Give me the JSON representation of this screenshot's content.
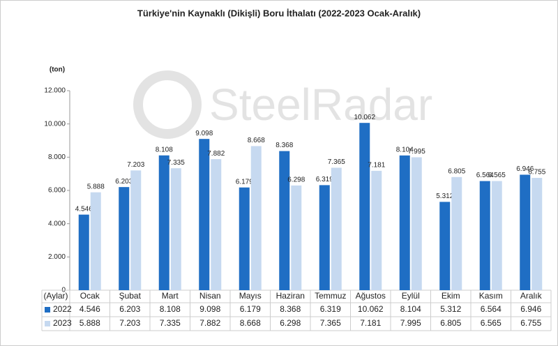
{
  "chart_data": {
    "type": "bar",
    "title": "Türkiye'nin Kaynaklı (Dikişli) Boru İthalatı (2022-2023 Ocak-Aralık)",
    "y_label": "(ton)",
    "x_label": "(Aylar)",
    "watermark": "SteelRadar",
    "categories": [
      "Ocak",
      "Şubat",
      "Mart",
      "Nisan",
      "Mayıs",
      "Haziran",
      "Temmuz",
      "Ağustos",
      "Eylül",
      "Ekim",
      "Kasım",
      "Aralık"
    ],
    "series": [
      {
        "name": "2022",
        "color": "#1f6ec4",
        "values": [
          4546,
          6203,
          8108,
          9098,
          6179,
          8368,
          6319,
          10062,
          8104,
          5312,
          6564,
          6946
        ],
        "value_labels": [
          "4.546",
          "6.203",
          "8.108",
          "9.098",
          "6.179",
          "8.368",
          "6.319",
          "10.062",
          "8.104",
          "5.312",
          "6.564",
          "6.946"
        ]
      },
      {
        "name": "2023",
        "color": "#c6d9f0",
        "values": [
          5888,
          7203,
          7335,
          7882,
          8668,
          6298,
          7365,
          7181,
          7995,
          6805,
          6565,
          6755
        ],
        "value_labels": [
          "5.888",
          "7.203",
          "7.335",
          "7.882",
          "8.668",
          "6.298",
          "7.365",
          "7.181",
          "7.995",
          "6.805",
          "6.565",
          "6.755"
        ]
      }
    ],
    "ylim": [
      0,
      12000
    ],
    "yticks": [
      0,
      {
        "value": 2000,
        "label": "2.000"
      },
      {
        "value": 4000,
        "label": "4.000"
      },
      {
        "value": 6000,
        "label": "6.000"
      },
      {
        "value": 8000,
        "label": "8.000"
      },
      {
        "value": 10000,
        "label": "10.000"
      },
      {
        "value": 12000,
        "label": "12.000"
      }
    ],
    "grid": false
  }
}
